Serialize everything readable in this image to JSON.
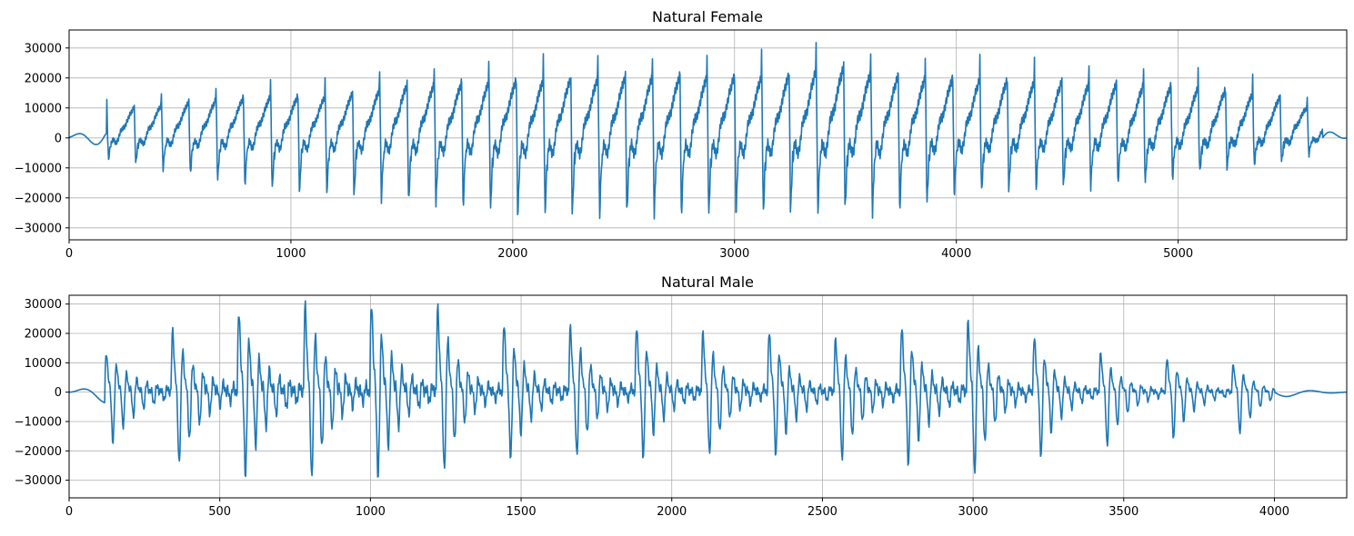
{
  "chart_data": [
    {
      "type": "line",
      "title": "Natural Female",
      "xlabel": "",
      "ylabel": "",
      "xlim": [
        0,
        5760
      ],
      "ylim": [
        -34000,
        36000
      ],
      "xticks": [
        0,
        1000,
        2000,
        3000,
        4000,
        5000
      ],
      "xtick_labels": [
        "0",
        "1000",
        "2000",
        "3000",
        "4000",
        "5000"
      ],
      "yticks": [
        -30000,
        -20000,
        -10000,
        0,
        10000,
        20000,
        30000
      ],
      "ytick_labels": [
        "−30000",
        "−20000",
        "−10000",
        "0",
        "10000",
        "20000",
        "30000"
      ],
      "grid": true,
      "color": "#1f77b4",
      "series": [
        {
          "n_samples": 5760,
          "period_samples": 123,
          "start_peak_x": 170,
          "end_peak_x": 5650,
          "envelope": {
            "x": [
              0,
              150,
              300,
              600,
              900,
              1200,
              1500,
              1800,
              2000,
              2300,
              2600,
              2900,
              3200,
              3450,
              3700,
              4000,
              4300,
              4600,
              4900,
              5200,
              5500,
              5650,
              5760
            ],
            "max": [
              2000,
              12000,
              14000,
              17000,
              19000,
              19000,
              24000,
              25000,
              26000,
              27000,
              28000,
              28000,
              28000,
              32500,
              28000,
              27000,
              26000,
              25000,
              24000,
              22000,
              18000,
              10500,
              0
            ],
            "min": [
              0,
              -8000,
              -10000,
              -15000,
              -20000,
              -22000,
              -25000,
              -27000,
              -30500,
              -30000,
              -30000,
              -30500,
              -29000,
              -28000,
              -30000,
              -22000,
              -20000,
              -19000,
              -17000,
              -12000,
              -9000,
              -5000,
              0
            ]
          }
        }
      ]
    },
    {
      "type": "line",
      "title": "Natural Male",
      "xlabel": "",
      "ylabel": "",
      "xlim": [
        0,
        4240
      ],
      "ylim": [
        -36000,
        33000
      ],
      "xticks": [
        0,
        500,
        1000,
        1500,
        2000,
        2500,
        3000,
        3500,
        4000
      ],
      "xtick_labels": [
        "0",
        "500",
        "1000",
        "1500",
        "2000",
        "2500",
        "3000",
        "3500",
        "4000"
      ],
      "yticks": [
        -30000,
        -20000,
        -10000,
        0,
        10000,
        20000,
        30000
      ],
      "ytick_labels": [
        "−30000",
        "−20000",
        "−10000",
        "0",
        "10000",
        "20000",
        "30000"
      ],
      "grid": true,
      "color": "#1f77b4",
      "series": [
        {
          "n_samples": 4240,
          "period_samples": 220,
          "start_peak_x": 120,
          "end_peak_x": 4000,
          "envelope": {
            "x": [
              0,
              120,
              330,
              540,
              750,
              960,
              1180,
              1400,
              1620,
              1840,
              2070,
              2290,
              2520,
              2760,
              2990,
              3230,
              3470,
              3700,
              3930,
              4100,
              4240
            ],
            "max": [
              0,
              13000,
              20500,
              27000,
              29500,
              30000,
              30000,
              23500,
              22000,
              22500,
              20000,
              21000,
              17500,
              22000,
              24000,
              18000,
              12000,
              11000,
              8500,
              3000,
              0
            ],
            "min": [
              0,
              -18000,
              -26000,
              -31000,
              -32500,
              -32000,
              -31000,
              -25000,
              -23000,
              -25000,
              -23000,
              -23000,
              -25000,
              -27000,
              -30500,
              -24000,
              -19500,
              -17000,
              -15000,
              -5000,
              0
            ]
          }
        }
      ]
    }
  ]
}
